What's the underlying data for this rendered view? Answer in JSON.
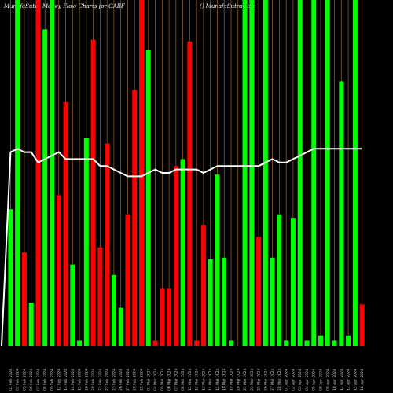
{
  "header": {
    "left": "MunafaSutra Money Flow  Charts for GABF",
    "right": "() MunafaSutra.com"
  },
  "colors": {
    "background": "#000000",
    "up": "#00ff00",
    "down": "#ff0000",
    "grid": "#8b5a2b",
    "line": "#ffffff"
  },
  "chart_data": {
    "type": "bar",
    "ylim": [
      0,
      100
    ],
    "categories": [
      "01 Feb 2024",
      "02 Feb 2024",
      "05 Feb 2024",
      "06 Feb 2024",
      "07 Feb 2024",
      "08 Feb 2024",
      "09 Feb 2024",
      "12 Feb 2024",
      "13 Feb 2024",
      "14 Feb 2024",
      "15 Feb 2024",
      "16 Feb 2024",
      "20 Feb 2024",
      "21 Feb 2024",
      "22 Feb 2024",
      "23 Feb 2024",
      "26 Feb 2024",
      "27 Feb 2024",
      "28 Feb 2024",
      "29 Feb 2024",
      "01 Mar 2024",
      "04 Mar 2024",
      "05 Mar 2024",
      "06 Mar 2024",
      "07 Mar 2024",
      "08 Mar 2024",
      "11 Mar 2024",
      "12 Mar 2024",
      "13 Mar 2024",
      "14 Mar 2024",
      "15 Mar 2024",
      "18 Mar 2024",
      "19 Mar 2024",
      "20 Mar 2024",
      "21 Mar 2024",
      "22 Mar 2024",
      "25 Mar 2024",
      "26 Mar 2024",
      "27 Mar 2024",
      "28 Mar 2024",
      "01 Apr 2024",
      "02 Apr 2024",
      "03 Apr 2024",
      "04 Apr 2024",
      "05 Apr 2024",
      "08 Apr 2024",
      "09 Apr 2024",
      "10 Apr 2024",
      "11 Apr 2024",
      "12 Apr 2024",
      "15 Apr 2024",
      "16 Apr 2024"
    ],
    "values": [
      39.5,
      100,
      27,
      12.5,
      100,
      91.5,
      100,
      43.5,
      70.5,
      23.5,
      1.5,
      60,
      88.5,
      28.5,
      58.5,
      20.5,
      11,
      38,
      74,
      100,
      85.5,
      1.5,
      16.5,
      16.5,
      52,
      54,
      88,
      1.5,
      35,
      25,
      49.5,
      25.5,
      1.5,
      0,
      100,
      100,
      31.5,
      100,
      25.5,
      38,
      1.5,
      37,
      100,
      1.5,
      100,
      3,
      100,
      1.5,
      76.5,
      3,
      100,
      12
    ],
    "colors": [
      "#00ff00",
      "#00ff00",
      "#ff0000",
      "#00ff00",
      "#ff0000",
      "#00ff00",
      "#00ff00",
      "#ff0000",
      "#ff0000",
      "#00ff00",
      "#00ff00",
      "#00ff00",
      "#ff0000",
      "#ff0000",
      "#ff0000",
      "#00ff00",
      "#00ff00",
      "#ff0000",
      "#ff0000",
      "#ff0000",
      "#00ff00",
      "#ff0000",
      "#ff0000",
      "#ff0000",
      "#ff0000",
      "#00ff00",
      "#ff0000",
      "#ff0000",
      "#ff0000",
      "#00ff00",
      "#00ff00",
      "#00ff00",
      "#00ff00",
      "#00ff00",
      "#00ff00",
      "#00ff00",
      "#ff0000",
      "#00ff00",
      "#00ff00",
      "#00ff00",
      "#00ff00",
      "#00ff00",
      "#00ff00",
      "#00ff00",
      "#00ff00",
      "#00ff00",
      "#00ff00",
      "#00ff00",
      "#00ff00",
      "#00ff00",
      "#00ff00",
      "#ff0000"
    ],
    "line": [
      56,
      57,
      56,
      56,
      53,
      54,
      55,
      56,
      54,
      54,
      54,
      54,
      54,
      52,
      52,
      51,
      50,
      49,
      49,
      49,
      50,
      51,
      50,
      50,
      51,
      51,
      51,
      51,
      50,
      51,
      52,
      52,
      52,
      52,
      52,
      52,
      52,
      53,
      54,
      53,
      53,
      54,
      55,
      56,
      57,
      57,
      57,
      57,
      57,
      57,
      57,
      57
    ]
  }
}
